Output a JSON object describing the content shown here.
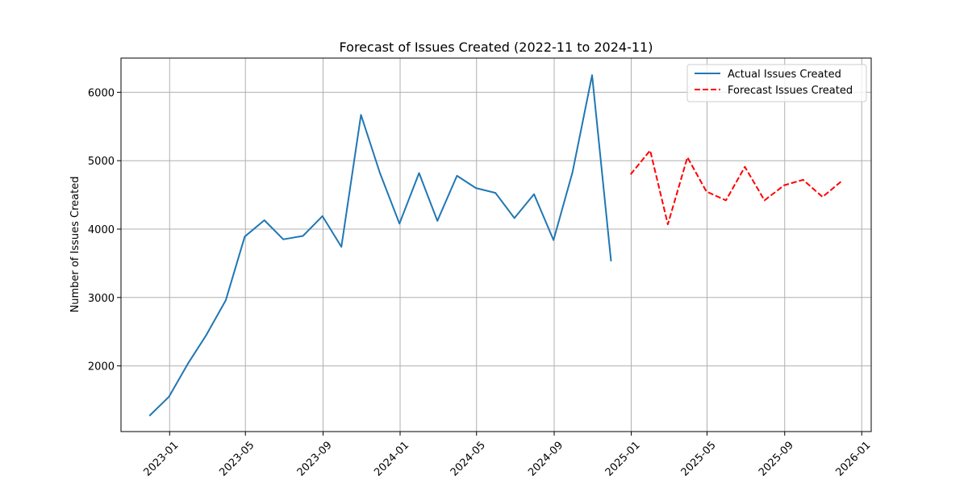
{
  "chart_data": {
    "type": "line",
    "title": "Forecast of Issues Created (2022-11 to 2024-11)",
    "xlabel": "",
    "ylabel": "Number of Issues Created",
    "x_range": [
      "2022-10-16",
      "2026-01-16"
    ],
    "ylim": [
      1040,
      6500
    ],
    "x_ticks": [
      "2023-01",
      "2023-05",
      "2023-09",
      "2024-01",
      "2024-05",
      "2024-09",
      "2025-01",
      "2025-05",
      "2025-09",
      "2026-01"
    ],
    "y_ticks": [
      2000,
      3000,
      4000,
      5000,
      6000
    ],
    "grid": true,
    "legend_position": "top-right",
    "series": [
      {
        "name": "Actual Issues Created",
        "color": "#1f77b4",
        "style": "solid",
        "x": [
          "2022-11-30",
          "2022-12-31",
          "2023-01-31",
          "2023-02-28",
          "2023-03-31",
          "2023-04-30",
          "2023-05-31",
          "2023-06-30",
          "2023-07-31",
          "2023-08-31",
          "2023-09-30",
          "2023-10-31",
          "2023-11-30",
          "2023-12-31",
          "2024-01-31",
          "2024-02-29",
          "2024-03-31",
          "2024-04-30",
          "2024-05-31",
          "2024-06-30",
          "2024-07-31",
          "2024-08-31",
          "2024-09-30",
          "2024-10-31",
          "2024-11-30"
        ],
        "y": [
          1270,
          1550,
          2050,
          2450,
          2960,
          3890,
          4130,
          3850,
          3900,
          4190,
          3740,
          5670,
          4820,
          4080,
          4820,
          4120,
          4780,
          4600,
          4530,
          4160,
          4510,
          3840,
          4830,
          6250,
          3530
        ]
      },
      {
        "name": "Forecast Issues Created",
        "color": "#ff0000",
        "style": "dashed",
        "x": [
          "2024-12-31",
          "2025-01-31",
          "2025-02-28",
          "2025-03-31",
          "2025-04-30",
          "2025-05-31",
          "2025-06-30",
          "2025-07-31",
          "2025-08-31",
          "2025-09-30",
          "2025-10-31",
          "2025-11-30"
        ],
        "y": [
          4800,
          5150,
          4070,
          5050,
          4550,
          4420,
          4910,
          4420,
          4640,
          4720,
          4470,
          4700
        ]
      }
    ]
  }
}
